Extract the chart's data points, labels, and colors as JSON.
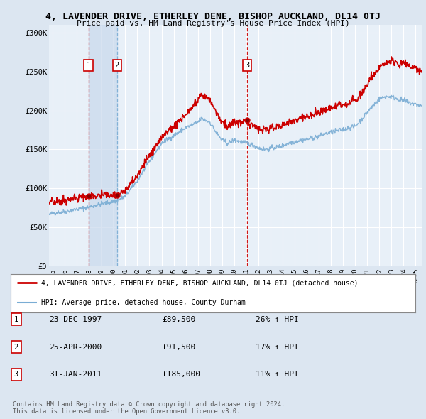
{
  "title": "4, LAVENDER DRIVE, ETHERLEY DENE, BISHOP AUCKLAND, DL14 0TJ",
  "subtitle": "Price paid vs. HM Land Registry's House Price Index (HPI)",
  "bg_color": "#dce6f1",
  "plot_bg_color": "#e8f0f8",
  "ylabel_ticks": [
    "£0",
    "£50K",
    "£100K",
    "£150K",
    "£200K",
    "£250K",
    "£300K"
  ],
  "ytick_values": [
    0,
    50000,
    100000,
    150000,
    200000,
    250000,
    300000
  ],
  "ylim": [
    0,
    310000
  ],
  "xlim_start": 1994.7,
  "xlim_end": 2025.5,
  "sales": [
    {
      "label": "1",
      "date_num": 1997.97,
      "price": 89500,
      "pct": "26%",
      "date_str": "23-DEC-1997",
      "vline_style": "red_dashed"
    },
    {
      "label": "2",
      "date_num": 2000.32,
      "price": 91500,
      "pct": "17%",
      "date_str": "25-APR-2000",
      "vline_style": "blue_dashed"
    },
    {
      "label": "3",
      "date_num": 2011.08,
      "price": 185000,
      "pct": "11%",
      "date_str": "31-JAN-2011",
      "vline_style": "red_dashed"
    }
  ],
  "legend_line1": "4, LAVENDER DRIVE, ETHERLEY DENE, BISHOP AUCKLAND, DL14 0TJ (detached house)",
  "legend_line2": "HPI: Average price, detached house, County Durham",
  "footnote": "Contains HM Land Registry data © Crown copyright and database right 2024.\nThis data is licensed under the Open Government Licence v3.0.",
  "red_color": "#cc0000",
  "blue_color": "#7aadd4",
  "vline_red": "#cc0000",
  "vline_blue": "#7aadd4",
  "grid_color": "#ffffff",
  "shade_color": "#c8d8ec",
  "xticks": [
    1995,
    1996,
    1997,
    1998,
    1999,
    2000,
    2001,
    2002,
    2003,
    2004,
    2005,
    2006,
    2007,
    2008,
    2009,
    2010,
    2011,
    2012,
    2013,
    2014,
    2015,
    2016,
    2017,
    2018,
    2019,
    2020,
    2021,
    2022,
    2023,
    2024,
    2025
  ]
}
